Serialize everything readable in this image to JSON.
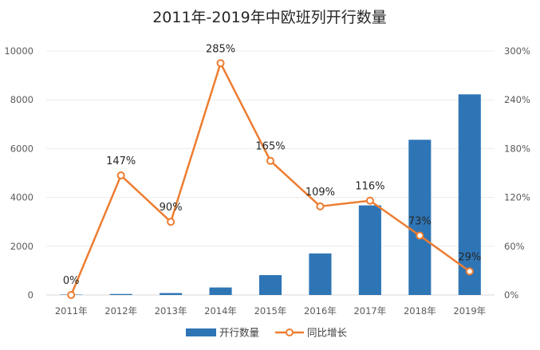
{
  "chart_data": {
    "type": "bar",
    "title": "2011年-2019年中欧班列开行数量",
    "categories": [
      "2011年",
      "2012年",
      "2013年",
      "2014年",
      "2015年",
      "2016年",
      "2017年",
      "2018年",
      "2019年"
    ],
    "series": [
      {
        "name": "开行数量",
        "type": "bar",
        "axis": "left",
        "color": "#2e75b6",
        "values": [
          17,
          42,
          80,
          308,
          815,
          1702,
          3673,
          6363,
          8225
        ]
      },
      {
        "name": "同比增长",
        "type": "line",
        "axis": "right",
        "color": "#ed7d31",
        "values": [
          0,
          147,
          90,
          285,
          165,
          109,
          116,
          73,
          29
        ],
        "labels": [
          "0%",
          "147%",
          "90%",
          "285%",
          "165%",
          "109%",
          "116%",
          "73%",
          "29%"
        ]
      }
    ],
    "y_left": {
      "range": [
        0,
        10000
      ],
      "ticks": [
        0,
        2000,
        4000,
        6000,
        8000,
        10000
      ],
      "tick_labels": [
        "0",
        "2000",
        "4000",
        "6000",
        "8000",
        "10000"
      ]
    },
    "y_right": {
      "range": [
        0,
        300
      ],
      "ticks": [
        0,
        60,
        120,
        180,
        240,
        300
      ],
      "tick_labels": [
        "0%",
        "60%",
        "120%",
        "180%",
        "240%",
        "300%"
      ]
    },
    "grid": true,
    "legend_position": "bottom"
  }
}
